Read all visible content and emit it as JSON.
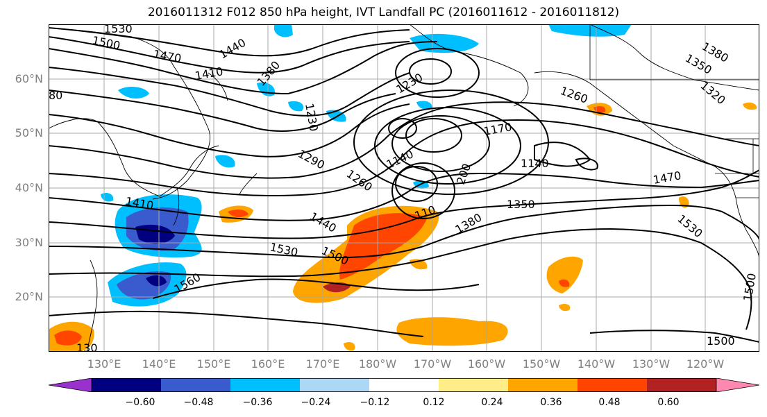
{
  "title": "2016011312 F012 850 hPa height, IVT Landfall PC (2016011612 - 2016011812)",
  "map": {
    "lat_ticks": [
      "60°N",
      "50°N",
      "40°N",
      "30°N",
      "20°N"
    ],
    "lon_ticks": [
      "130°E",
      "140°E",
      "150°E",
      "160°E",
      "170°E",
      "180°W",
      "170°W",
      "160°W",
      "150°W",
      "140°W",
      "130°W",
      "120°W"
    ],
    "contour_labels": [
      "1530",
      "1500",
      "1470",
      "1440",
      "1410",
      "1380",
      "80",
      "1230",
      "1230",
      "1260",
      "1380",
      "1350",
      "1320",
      "1170",
      "1140",
      "1140",
      "1290",
      "1260",
      "200",
      "1350",
      "1470",
      "1410",
      "1440",
      "110",
      "1380",
      "1530",
      "1500",
      "1530",
      "1560",
      "130",
      "1500",
      "1500"
    ]
  },
  "colorbar": {
    "tick_labels": [
      "−0.60",
      "−0.48",
      "−0.36",
      "−0.24",
      "−0.12",
      "0.12",
      "0.24",
      "0.36",
      "0.48",
      "0.60"
    ],
    "colors": [
      "#9932cc",
      "#000080",
      "#3a5bcd",
      "#00bfff",
      "#add8f5",
      "#ffffff",
      "#ffee88",
      "#ffa500",
      "#ff4500",
      "#b22222",
      "#ff88b0"
    ]
  }
}
